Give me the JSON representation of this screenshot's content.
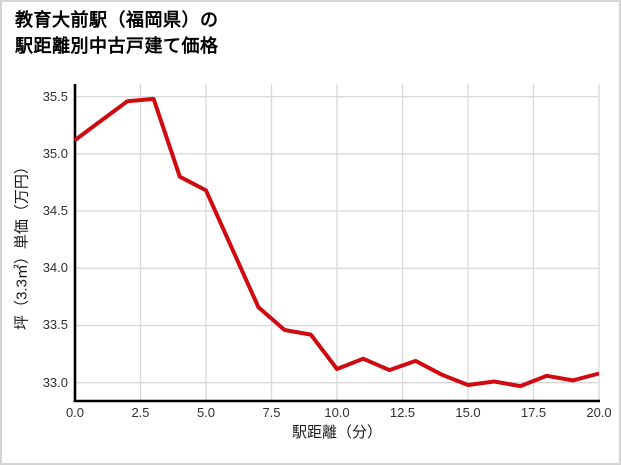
{
  "page": {
    "background": "#ffffff",
    "border_color": "#d4d4d4"
  },
  "chart_data": {
    "type": "line",
    "title_lines": [
      "教育大前駅（福岡県）の",
      "駅距離別中古戸建て価格"
    ],
    "xlabel": "駅距離（分）",
    "ylabel": "坪（3.3㎡）単価（万円）",
    "x": [
      0,
      1,
      2,
      3,
      4,
      5,
      6,
      7,
      8,
      9,
      10,
      11,
      12,
      13,
      14,
      15,
      16,
      17,
      18,
      19,
      20
    ],
    "values": [
      35.12,
      35.29,
      35.46,
      35.48,
      34.8,
      34.68,
      34.17,
      33.66,
      33.46,
      33.42,
      33.12,
      33.21,
      33.11,
      33.19,
      33.07,
      32.98,
      33.01,
      32.97,
      33.06,
      33.02,
      33.08
    ],
    "xticks": [
      0,
      2.5,
      5,
      7.5,
      10,
      12.5,
      15,
      17.5,
      20
    ],
    "xtick_labels": [
      "0.0",
      "2.5",
      "5.0",
      "7.5",
      "10.0",
      "12.5",
      "15.0",
      "17.5",
      "20.0"
    ],
    "yticks": [
      33.0,
      33.5,
      34.0,
      34.5,
      35.0,
      35.5
    ],
    "ytick_labels": [
      "33.0",
      "33.5",
      "34.0",
      "34.5",
      "35.0",
      "35.5"
    ],
    "xlim": [
      0,
      20
    ],
    "ylim": [
      32.84,
      35.61
    ],
    "grid": true,
    "legend": null,
    "line_color": "#cf0a10",
    "grid_color": "#d8d8d8",
    "axis_color": "#000000",
    "tick_label_color": "#303030"
  }
}
